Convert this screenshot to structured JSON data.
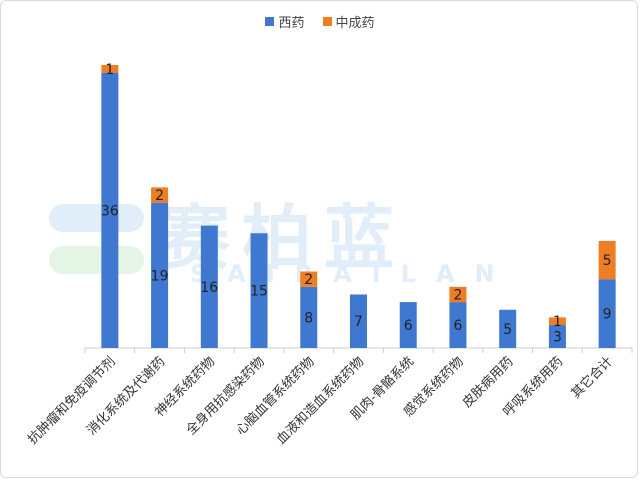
{
  "legend": {
    "series0": {
      "label": "西药",
      "color": "#3f78d1"
    },
    "series1": {
      "label": "中成药",
      "color": "#ef7d22"
    }
  },
  "watermark": {
    "text": "赛柏蓝",
    "subtext": "SAIBAILAN"
  },
  "chart_data": {
    "type": "bar",
    "stacked": true,
    "categories": [
      "抗肿瘤和免疫调节剂",
      "消化系统及代谢药",
      "神经系统药物",
      "全身用抗感染药物",
      "心脑血管系统药物",
      "血液和造血系统药物",
      "肌肉-骨骼系统",
      "感觉系统药物",
      "皮肤病用药",
      "呼吸系统用药",
      "其它合计"
    ],
    "series": [
      {
        "name": "西药",
        "values": [
          36,
          19,
          16,
          15,
          8,
          7,
          6,
          6,
          5,
          3,
          9
        ],
        "labels": [
          "36",
          "19",
          "16",
          "15",
          "8",
          "7",
          "6",
          "6",
          "5",
          "3",
          "9"
        ],
        "color": "#3f78d1"
      },
      {
        "name": "中成药",
        "values": [
          1,
          2,
          0,
          0,
          2,
          0,
          0,
          2,
          0,
          1,
          5
        ],
        "labels": [
          "1",
          "2",
          "",
          "",
          "2",
          "",
          "",
          "2",
          "",
          "1",
          "5"
        ],
        "color": "#ef7d22"
      }
    ],
    "ylim": [
      0,
      37
    ],
    "grid": false,
    "legend_position": "top"
  }
}
